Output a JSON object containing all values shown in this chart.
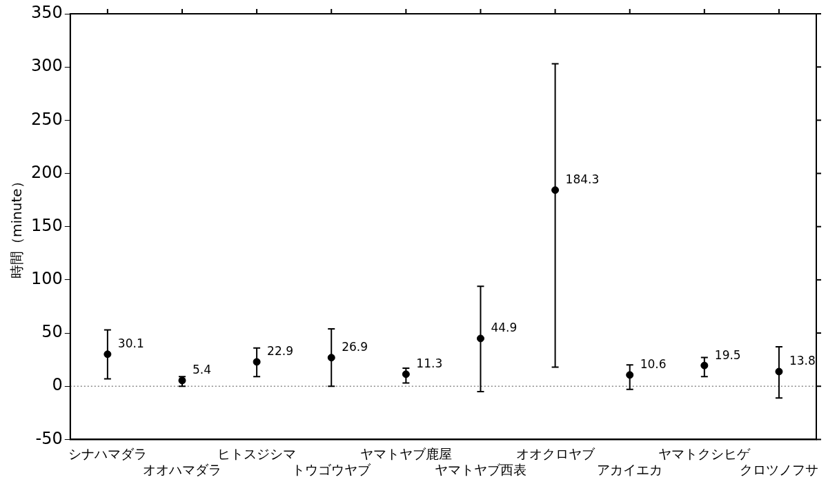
{
  "chart_data": {
    "type": "scatter",
    "ylabel": "時間（minute）",
    "categories": [
      "シナハマダラ",
      "オオハマダラ",
      "ヒトスジシマ",
      "トウゴウヤブ",
      "ヤマトヤブ鹿屋",
      "ヤマトヤブ西表",
      "オオクロヤブ",
      "アカイエカ",
      "ヤマトクシヒゲ",
      "クロツノフサ"
    ],
    "series": [
      {
        "color": "#000000",
        "values": [
          30.1,
          5.4,
          22.9,
          26.9,
          11.3,
          44.9,
          184.3,
          10.6,
          19.5,
          13.8
        ],
        "errors": [
          [
            7,
            53
          ],
          [
            0,
            9
          ],
          [
            9,
            36
          ],
          [
            0,
            54
          ],
          [
            3,
            17
          ],
          [
            -5,
            94
          ],
          [
            18,
            303
          ],
          [
            -3,
            20
          ],
          [
            9,
            27
          ],
          [
            -11,
            37
          ]
        ]
      }
    ],
    "data_labels": true,
    "marker": "circle",
    "ylim": [
      -50,
      350
    ],
    "yticks": [
      -50,
      0,
      50,
      100,
      150,
      200,
      250,
      300,
      350
    ],
    "ref_lines": [
      {
        "axis": "y",
        "value": 0,
        "color": "#888888",
        "line_style": "dotted"
      }
    ],
    "grid": false,
    "legend": false
  }
}
